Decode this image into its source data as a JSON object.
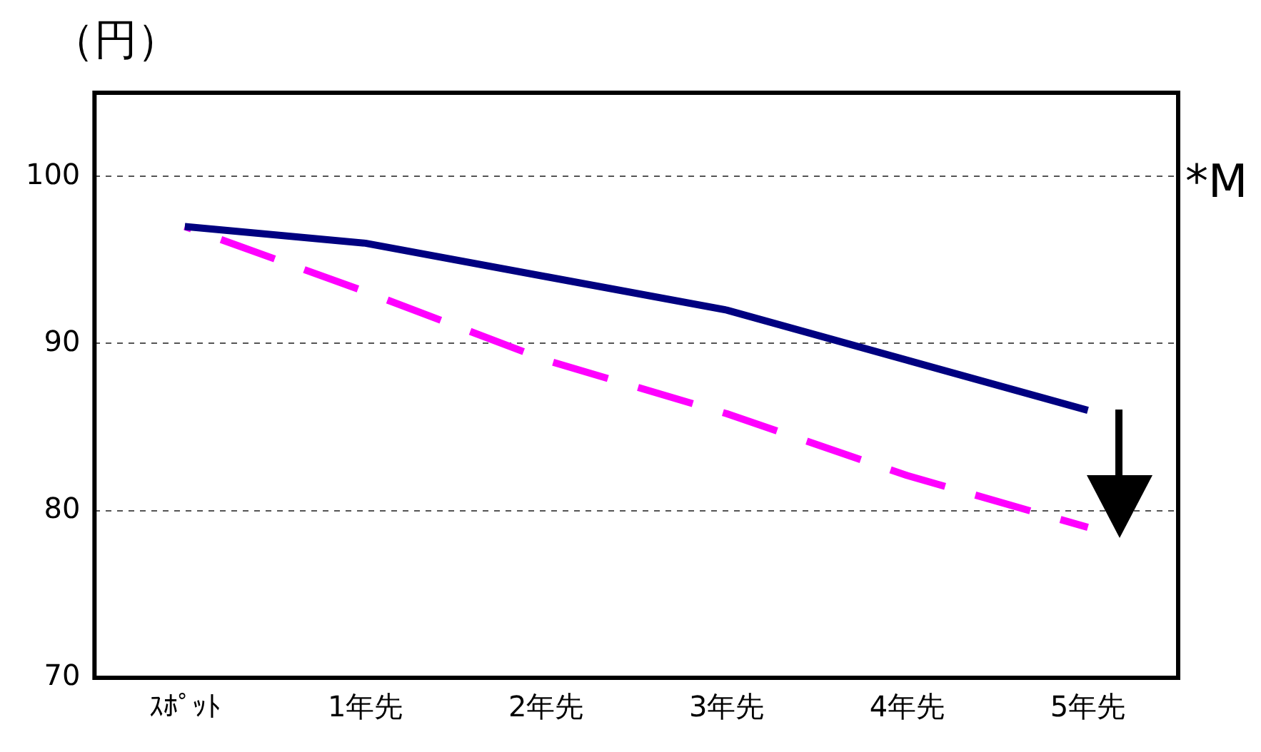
{
  "chart_data": {
    "type": "line",
    "ylabel": "（円）",
    "annotations": [
      "*M"
    ],
    "categories": [
      "ｽﾎﾟｯﾄ",
      "1年先",
      "2年先",
      "3年先",
      "4年先",
      "5年先"
    ],
    "series": [
      {
        "color": "#000080",
        "line_style": "solid",
        "values": [
          97,
          96,
          94,
          92,
          89,
          86
        ]
      },
      {
        "color": "#ff00ff",
        "line_style": "dashed",
        "values": [
          97,
          93.1,
          89,
          85.8,
          82.1,
          79
        ]
      }
    ],
    "ylim": [
      70,
      105
    ],
    "yticks": [
      70,
      80,
      90,
      100
    ],
    "grid": "y",
    "legend": false,
    "marker": "none"
  }
}
